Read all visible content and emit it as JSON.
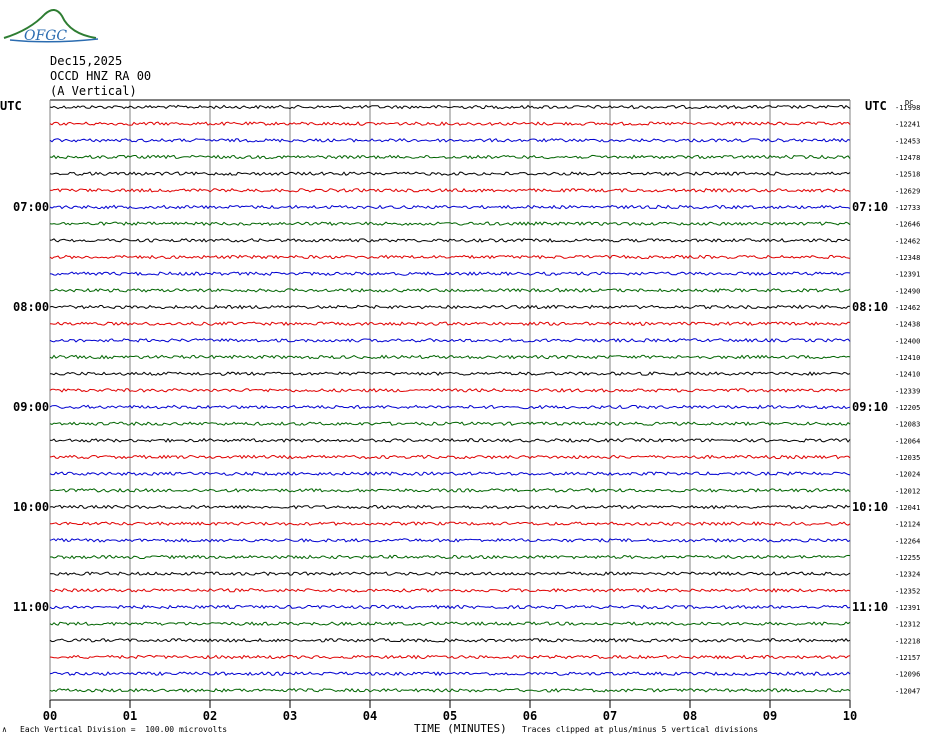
{
  "header": {
    "logo_text": "OFGC",
    "date": "Dec15,2025",
    "station": "OCCD HNZ RA 00",
    "component": "(A Vertical)",
    "utc_left": "UTC",
    "utc_right": "UTC",
    "dc_label": "DC"
  },
  "chart_data": {
    "type": "line",
    "title": "Dec15,2025 OCCD HNZ RA 00 (A Vertical)",
    "xlabel": "TIME (MINUTES)",
    "ylabel": "",
    "x_ticks": [
      "00",
      "01",
      "02",
      "03",
      "04",
      "05",
      "06",
      "07",
      "08",
      "09",
      "10"
    ],
    "xlim": [
      0,
      10
    ],
    "grid": true,
    "trace_colors": [
      "#000000",
      "#e00000",
      "#0000d0",
      "#006400"
    ],
    "left_time_labels": [
      {
        "row": 6,
        "label": "07:00"
      },
      {
        "row": 12,
        "label": "08:00"
      },
      {
        "row": 18,
        "label": "09:00"
      },
      {
        "row": 24,
        "label": "10:00"
      },
      {
        "row": 30,
        "label": "11:00"
      }
    ],
    "right_time_labels": [
      {
        "row": 6,
        "label": "07:10"
      },
      {
        "row": 12,
        "label": "08:10"
      },
      {
        "row": 18,
        "label": "09:10"
      },
      {
        "row": 24,
        "label": "10:10"
      },
      {
        "row": 30,
        "label": "11:10"
      }
    ],
    "dc_offsets": [
      "-11998",
      "-12241",
      "-12453",
      "-12478",
      "-12518",
      "-12629",
      "-12733",
      "-12646",
      "-12462",
      "-12348",
      "-12391",
      "-12490",
      "-12462",
      "-12438",
      "-12400",
      "-12410",
      "-12410",
      "-12339",
      "-12205",
      "-12083",
      "-12064",
      "-12035",
      "-12024",
      "-12012",
      "-12041",
      "-12124",
      "-12264",
      "-12255",
      "-12324",
      "-12352",
      "-12391",
      "-12312",
      "-12218",
      "-12157",
      "-12096",
      "-12047"
    ],
    "annotations": {
      "scale_mark": "∧",
      "scale_note": "Each Vertical Division =  100.00 microvolts",
      "clip_note": "Traces clipped at plus/minus 5 vertical divisions"
    }
  }
}
